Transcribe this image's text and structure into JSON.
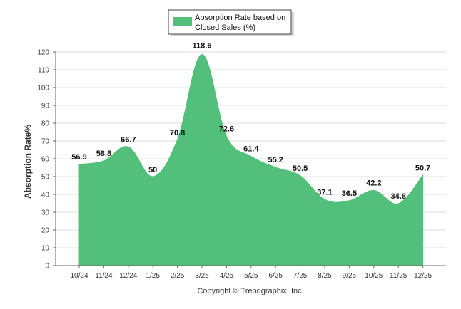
{
  "chart_data": {
    "type": "area",
    "title": "",
    "legend": {
      "labels": [
        "Absorption Rate based on",
        "Closed Sales (%)"
      ],
      "placement": "top-center"
    },
    "xlabel": "",
    "ylabel": "Absorption Rate%",
    "ylim": [
      0,
      120
    ],
    "yticks": [
      0,
      10,
      20,
      30,
      40,
      50,
      60,
      70,
      80,
      90,
      100,
      110,
      120
    ],
    "categories": [
      "10/24",
      "11/24",
      "12/24",
      "1/25",
      "2/25",
      "3/25",
      "4/25",
      "5/25",
      "6/25",
      "7/25",
      "8/25",
      "9/25",
      "10/25",
      "11/25",
      "12/25"
    ],
    "values": [
      56.9,
      58.8,
      66.7,
      50,
      70.8,
      118.6,
      72.6,
      61.4,
      55.2,
      50.5,
      37.1,
      36.5,
      42.2,
      34.8,
      50.7
    ],
    "data_labels": [
      "56.9",
      "58.8",
      "66.7",
      "50",
      "70.8",
      "118.6",
      "72.6",
      "61.4",
      "55.2",
      "50.5",
      "37.1",
      "36.5",
      "42.2",
      "34.8",
      "50.7"
    ],
    "series_name": "Absorption Rate based on Closed Sales (%)",
    "grid": true,
    "colors": {
      "fill": "#52c07a",
      "grid": "#dddddd",
      "axis": "#666666",
      "background": "#ffffff"
    }
  },
  "footer": {
    "copyright": "Copyright © Trendgraphix, Inc."
  }
}
